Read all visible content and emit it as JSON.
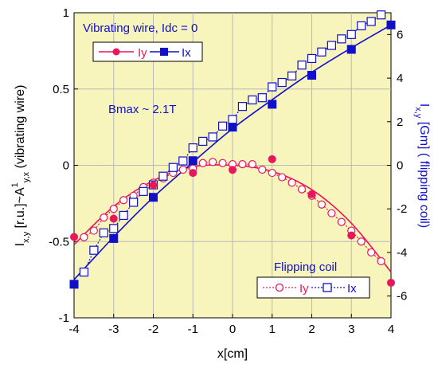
{
  "chart_data": {
    "type": "line",
    "xlabel": "x[cm]",
    "ylabel_left": {
      "main": "I",
      "sub1": "x,y",
      "mid": " [r.u.]~A",
      "sup": "1",
      "sub2": "y,x",
      "tail": "  (vibrating wire)"
    },
    "ylabel_right": {
      "main": "I",
      "sub": "x,y",
      "tail": " [Gm]  ( flipping coil)"
    },
    "xlim": [
      -4,
      4
    ],
    "ylim_left": [
      -1,
      1
    ],
    "ylim_right": [
      -7,
      7
    ],
    "x_ticks": [
      "-4",
      "-3",
      "-2",
      "-1",
      "0",
      "1",
      "2",
      "3",
      "4"
    ],
    "y_left_ticks": [
      "-1",
      "-0.5",
      "0",
      "0.5",
      "1"
    ],
    "y_right_ticks": [
      "-6",
      "-4",
      "-2",
      "0",
      "2",
      "4",
      "6"
    ],
    "background": "#f7f4bc",
    "colors": {
      "iy": "#e8175d",
      "ix": "#1010c8"
    },
    "annotation": "Bmax ~ 2.1T",
    "legend_top": {
      "title": "Vibrating wire, Idc = 0",
      "items": [
        "Iy",
        "Ix"
      ]
    },
    "legend_bottom": {
      "title": "Flipping coil",
      "items": [
        "Iy",
        "Ix"
      ]
    },
    "series": [
      {
        "name": "Iy",
        "group": "vibrating-wire",
        "axis": "left",
        "marker": "filled-circle",
        "x": [
          -4,
          -3,
          -2,
          -1,
          0,
          1,
          2,
          3,
          4
        ],
        "y": [
          -0.47,
          -0.35,
          -0.13,
          -0.05,
          -0.03,
          0.04,
          -0.19,
          -0.46,
          -0.77
        ],
        "fit": [
          -0.52,
          -0.27,
          -0.1,
          -0.01,
          0.0,
          -0.04,
          -0.16,
          -0.38,
          -0.7
        ]
      },
      {
        "name": "Ix",
        "group": "vibrating-wire",
        "axis": "left",
        "marker": "filled-square",
        "x": [
          -4,
          -3,
          -2,
          -1,
          0,
          1,
          2,
          3,
          4
        ],
        "y": [
          -0.78,
          -0.48,
          -0.21,
          0.03,
          0.25,
          0.4,
          0.59,
          0.76,
          0.92
        ],
        "fit": [
          -0.75,
          -0.47,
          -0.21,
          0.02,
          0.24,
          0.43,
          0.61,
          0.77,
          0.92
        ]
      },
      {
        "name": "Iy",
        "group": "flipping-coil",
        "axis": "right",
        "marker": "open-circle",
        "x": [
          -3.75,
          -3.5,
          -3.25,
          -3,
          -2.75,
          -2.5,
          -2.25,
          -2,
          -1.75,
          -1.5,
          -1.25,
          -1,
          -0.75,
          -0.5,
          -0.25,
          0,
          0.25,
          0.5,
          0.75,
          1,
          1.25,
          1.5,
          1.75,
          2,
          2.25,
          2.5,
          2.75,
          3,
          3.25,
          3.5,
          3.75
        ],
        "y": [
          -3.3,
          -3.0,
          -2.4,
          -2.0,
          -1.6,
          -1.4,
          -1.0,
          -0.8,
          -0.6,
          -0.35,
          -0.2,
          -0.15,
          0.1,
          0.15,
          0.1,
          0.05,
          0.05,
          0.05,
          -0.2,
          -0.35,
          -0.55,
          -0.8,
          -1.1,
          -1.4,
          -1.8,
          -2.2,
          -2.6,
          -3.0,
          -3.5,
          -4.0,
          -4.4
        ]
      },
      {
        "name": "Ix",
        "group": "flipping-coil",
        "axis": "right",
        "marker": "open-square",
        "x": [
          -3.75,
          -3.5,
          -3.25,
          -3,
          -2.75,
          -2.5,
          -2.25,
          -2,
          -1.75,
          -1.5,
          -1.25,
          -1,
          -0.75,
          -0.5,
          -0.25,
          0,
          0.25,
          0.5,
          0.75,
          1,
          1.25,
          1.5,
          1.75,
          2,
          2.25,
          2.5,
          2.75,
          3,
          3.25,
          3.5,
          3.75
        ],
        "y": [
          -4.9,
          -3.9,
          -3.1,
          -2.9,
          -2.3,
          -1.7,
          -1.2,
          -0.9,
          -0.5,
          -0.1,
          0.2,
          0.8,
          1.1,
          1.3,
          1.8,
          2.1,
          2.7,
          3.0,
          3.1,
          3.6,
          3.8,
          4.1,
          4.6,
          4.9,
          5.2,
          5.5,
          5.8,
          6.0,
          6.4,
          6.6,
          6.9
        ]
      }
    ]
  }
}
